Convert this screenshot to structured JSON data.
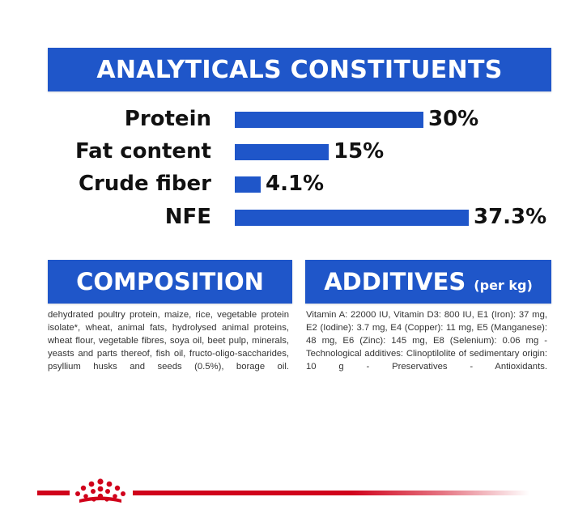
{
  "colors": {
    "brand_blue": "#1f56c9",
    "brand_red": "#d0021b"
  },
  "analyticals": {
    "title": "ANALYTICALS CONSTITUENTS",
    "rows": [
      {
        "label": "Protein",
        "value_text": "30%",
        "value": 30
      },
      {
        "label": "Fat content",
        "value_text": "15%",
        "value": 15
      },
      {
        "label": "Crude fiber",
        "value_text": "4.1%",
        "value": 4.1
      },
      {
        "label": "NFE",
        "value_text": "37.3%",
        "value": 37.3
      }
    ]
  },
  "composition": {
    "title": "COMPOSITION",
    "text": "dehydrated poultry protein, maize, rice, vegetable protein isolate*, wheat, animal fats, hydrolysed animal proteins, wheat flour, vegetable fibres, soya oil, beet pulp, minerals, yeasts and parts thereof, fish oil, fructo-oligo-saccharides, psyllium husks and seeds (0.5%), borage oil."
  },
  "additives": {
    "title": "ADDITIVES",
    "unit": "(per kg)",
    "text": "Vitamin A: 22000 IU, Vitamin D3: 800 IU, E1 (Iron): 37 mg, E2 (Iodine): 3.7 mg, E4 (Copper): 11 mg, E5 (Manganese): 48 mg, E6 (Zinc): 145 mg, E8 (Selenium): 0.06 mg -Technological additives: Clinoptilolite of sedimentary origin: 10 g - Preservatives - Antioxidants."
  },
  "footer": {
    "logo_icon": "royal-canin-crown-icon"
  }
}
